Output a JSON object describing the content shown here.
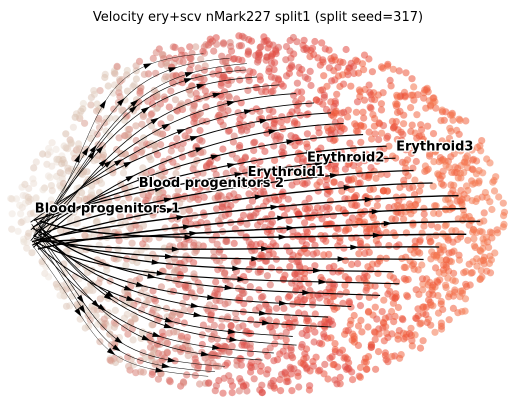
{
  "chart_data": {
    "type": "scatter",
    "title": "Velocity ery+scv nMark227 split1 (split seed=317)",
    "xlabel": "",
    "ylabel": "",
    "grid": false,
    "axes": "off",
    "overlay": "velocity streamlines with arrowheads",
    "colormap": {
      "name": "latent time",
      "stops": [
        "#efe6de",
        "#d9c0b0",
        "#d8665f",
        "#e14a43",
        "#f05a3a",
        "#f47a52"
      ]
    },
    "cluster_labels": [
      {
        "name": "Blood progenitors 1",
        "x": 0.05,
        "y": 0.5
      },
      {
        "name": "Blood progenitors 2",
        "x": 0.26,
        "y": 0.57
      },
      {
        "name": "Erythroid1",
        "x": 0.48,
        "y": 0.6
      },
      {
        "name": "Erythroid2",
        "x": 0.6,
        "y": 0.64
      },
      {
        "name": "Erythroid3",
        "x": 0.78,
        "y": 0.67
      }
    ],
    "xlim": [
      0,
      1
    ],
    "ylim": [
      0,
      1
    ]
  }
}
